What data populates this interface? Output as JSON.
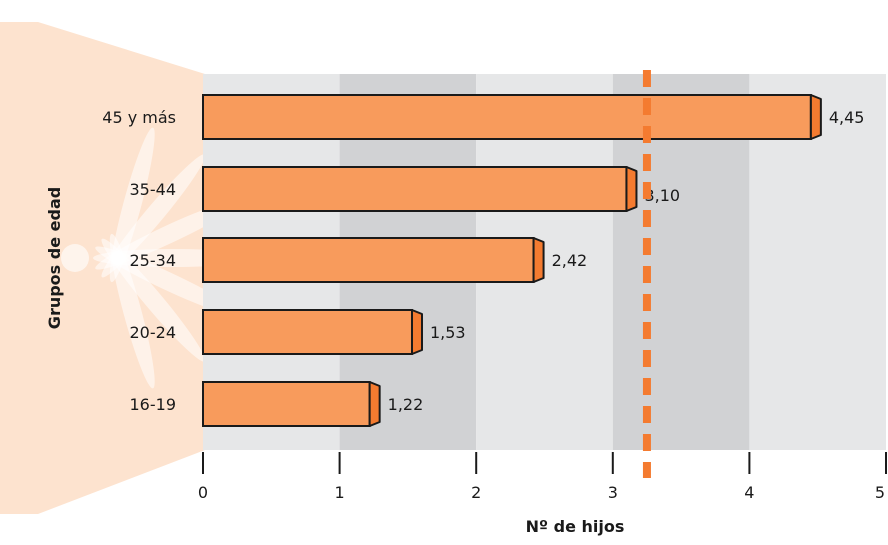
{
  "colors": {
    "bar_fill": "#F89B5C",
    "bar_end": "#F47B30",
    "bar_stroke": "#1a1a1a",
    "reference_line": "#F47B30",
    "band_light": "#E6E7E8",
    "band_dark": "#D1D2D4",
    "decor_bg": "#FDE3CF",
    "text": "#1a1a1a"
  },
  "chart_data": {
    "type": "bar",
    "orientation": "horizontal",
    "categories": [
      "45 y más",
      "35-44",
      "25-34",
      "20-24",
      "16-19"
    ],
    "values": [
      4.45,
      3.1,
      2.42,
      1.53,
      1.22
    ],
    "value_labels": [
      "4,45",
      "3,10",
      "2,42",
      "1,53",
      "1,22"
    ],
    "xlabel": "Nº de hijos",
    "ylabel": "Grupos de edad",
    "xlim": [
      0,
      5
    ],
    "x_ticks": [
      "0",
      "1",
      "2",
      "3",
      "4",
      "5"
    ],
    "reference_line": {
      "x": 3.25,
      "style": "dashed",
      "color": "#F47B30"
    },
    "grid": "alternating vertical bands",
    "legend": "none"
  }
}
